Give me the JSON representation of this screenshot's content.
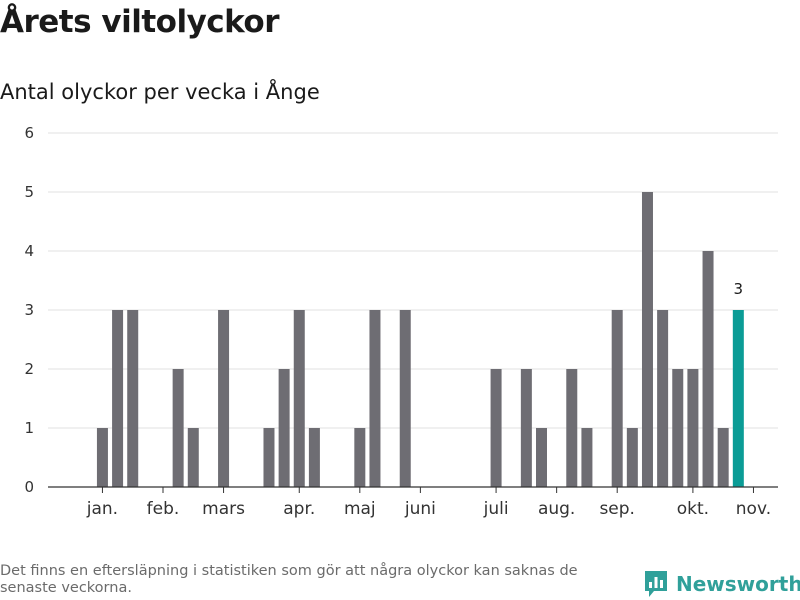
{
  "title": "Årets viltolyckor",
  "subtitle": "Antal olyckor per vecka i Ånge",
  "footnote": "Det finns en eftersläpning i statistiken som gör att några olyckor kan saknas de senaste veckorna.",
  "brand": {
    "name": "Newsworthy",
    "icon": "newsworthy-logo-icon",
    "color": "#30a09a"
  },
  "chart_data": {
    "type": "bar",
    "title": "Antal olyckor per vecka i Ånge",
    "xlabel": "",
    "ylabel": "",
    "weeks": [
      1,
      2,
      3,
      4,
      5,
      6,
      7,
      8,
      9,
      10,
      11,
      12,
      13,
      14,
      15,
      16,
      17,
      18,
      19,
      20,
      21,
      22,
      23,
      24,
      25,
      26,
      27,
      28,
      29,
      30,
      31,
      32,
      33,
      34,
      35,
      36,
      37,
      38,
      39,
      40,
      41,
      42,
      43,
      44,
      45
    ],
    "values": [
      0,
      1,
      3,
      3,
      0,
      0,
      2,
      1,
      0,
      3,
      0,
      0,
      1,
      2,
      3,
      1,
      0,
      0,
      1,
      3,
      0,
      3,
      0,
      0,
      0,
      0,
      0,
      2,
      0,
      2,
      1,
      0,
      2,
      1,
      0,
      3,
      1,
      5,
      3,
      2,
      2,
      4,
      1,
      3,
      0
    ],
    "ylim": [
      0,
      6
    ],
    "yticks": [
      0,
      1,
      2,
      3,
      4,
      5,
      6
    ],
    "month_ticks": [
      {
        "label": "jan.",
        "week": 2
      },
      {
        "label": "feb.",
        "week": 6
      },
      {
        "label": "mars",
        "week": 10
      },
      {
        "label": "apr.",
        "week": 15
      },
      {
        "label": "maj",
        "week": 19
      },
      {
        "label": "juni",
        "week": 23
      },
      {
        "label": "juli",
        "week": 28
      },
      {
        "label": "aug.",
        "week": 32
      },
      {
        "label": "sep.",
        "week": 36
      },
      {
        "label": "okt.",
        "week": 41
      },
      {
        "label": "nov.",
        "week": 45
      }
    ],
    "highlight_week": 44,
    "highlight_label": "3",
    "colors": {
      "bar": "#6e6d73",
      "highlight": "#0b9c96",
      "grid": "#e2e2e2",
      "axis": "#333333"
    }
  }
}
